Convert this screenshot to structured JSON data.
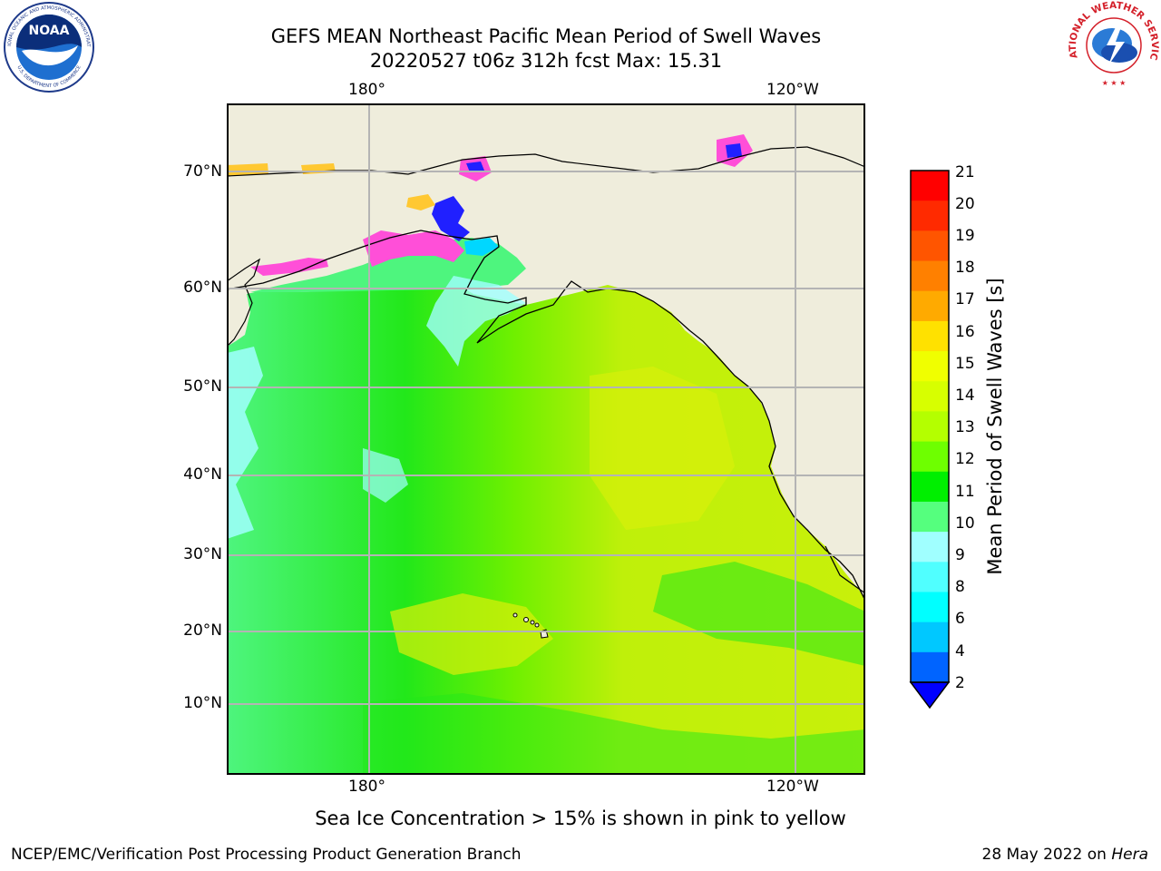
{
  "header": {
    "title_line1": "GEFS MEAN Northeast Pacific Mean Period of Swell Waves",
    "title_line2": "20220527 t06z 312h fcst   Max: 15.31"
  },
  "logos": {
    "noaa_text": "NOAA",
    "noaa_ring_top": "NATIONAL OCEANIC AND ATMOSPHERIC ADMINISTRATION",
    "noaa_ring_bottom": "U.S. DEPARTMENT OF COMMERCE",
    "nws_ring": "NATIONAL WEATHER SERVICE"
  },
  "map": {
    "lon_labels_top": [
      "180°",
      "120°W"
    ],
    "lon_labels_bottom": [
      "180°",
      "120°W"
    ],
    "lat_labels": [
      "70°N",
      "60°N",
      "50°N",
      "40°N",
      "30°N",
      "20°N",
      "10°N"
    ],
    "colors": {
      "land": "#efeddc",
      "ocean_west": "#4ef57e",
      "ocean_mid": "#22e81a",
      "ocean_east": "#bff00a",
      "sea_ice_pink": "#ff4fd8",
      "sea_ice_yellow": "#ffc832"
    }
  },
  "colorbar": {
    "label": "Mean Period of Swell Waves [s]",
    "ticks": [
      "21",
      "20",
      "19",
      "18",
      "17",
      "16",
      "15",
      "14",
      "13",
      "12",
      "11",
      "10",
      "9",
      "8",
      "6",
      "4",
      "2"
    ],
    "colors": [
      "#ff0000",
      "#ff2a00",
      "#ff5500",
      "#ff8000",
      "#ffaa00",
      "#ffe100",
      "#f0ff00",
      "#d7ff00",
      "#b4ff00",
      "#6eff00",
      "#00ef00",
      "#55ff7e",
      "#a0ffff",
      "#50ffff",
      "#00ffff",
      "#00c8ff",
      "#0064ff"
    ],
    "extend_color": "#0000ff"
  },
  "notes": {
    "ice": "Sea Ice Concentration > 15% is shown in pink to yellow"
  },
  "footer": {
    "left": "NCEP/EMC/Verification Post Processing Product Generation Branch",
    "right_prefix": "28 May 2022 on",
    "right_machine": "Hera"
  }
}
